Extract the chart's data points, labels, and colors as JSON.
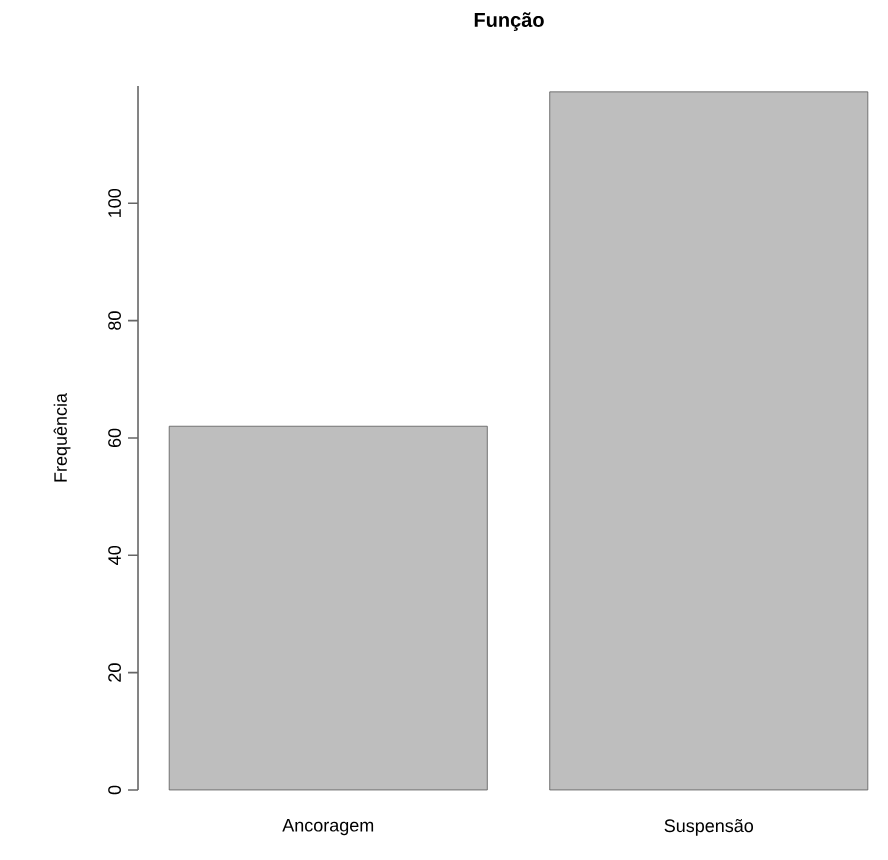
{
  "chart_data": {
    "type": "bar",
    "title": "Função",
    "ylabel": "Frequência",
    "categories": [
      "Ancoragem",
      "Suspensão"
    ],
    "values": [
      62,
      119
    ],
    "color": "#bebebe",
    "ylim": [
      0,
      120
    ],
    "yticks": [
      0,
      20,
      40,
      60,
      80,
      100
    ]
  }
}
